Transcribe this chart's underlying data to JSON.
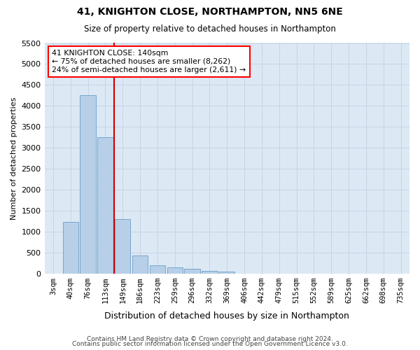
{
  "title": "41, KNIGHTON CLOSE, NORTHAMPTON, NN5 6NE",
  "subtitle": "Size of property relative to detached houses in Northampton",
  "xlabel": "Distribution of detached houses by size in Northampton",
  "ylabel": "Number of detached properties",
  "footer1": "Contains HM Land Registry data © Crown copyright and database right 2024.",
  "footer2": "Contains public sector information licensed under the Open Government Licence v3.0.",
  "annotation_title": "41 KNIGHTON CLOSE: 140sqm",
  "annotation_line1": "← 75% of detached houses are smaller (8,262)",
  "annotation_line2": "24% of semi-detached houses are larger (2,611) →",
  "bar_color": "#b8cfe8",
  "bar_edge_color": "#6a9fc8",
  "redline_color": "#cc0000",
  "grid_color": "#c8d4e4",
  "bg_color": "#dce8f4",
  "categories": [
    "3sqm",
    "40sqm",
    "76sqm",
    "113sqm",
    "149sqm",
    "186sqm",
    "223sqm",
    "259sqm",
    "296sqm",
    "332sqm",
    "369sqm",
    "406sqm",
    "442sqm",
    "479sqm",
    "515sqm",
    "552sqm",
    "589sqm",
    "625sqm",
    "662sqm",
    "698sqm",
    "735sqm"
  ],
  "values": [
    0,
    1230,
    4250,
    3250,
    1300,
    430,
    200,
    155,
    110,
    70,
    50,
    0,
    0,
    0,
    0,
    0,
    0,
    0,
    0,
    0,
    0
  ],
  "ylim": [
    0,
    5500
  ],
  "yticks": [
    0,
    500,
    1000,
    1500,
    2000,
    2500,
    3000,
    3500,
    4000,
    4500,
    5000,
    5500
  ],
  "redline_x": 3.5
}
